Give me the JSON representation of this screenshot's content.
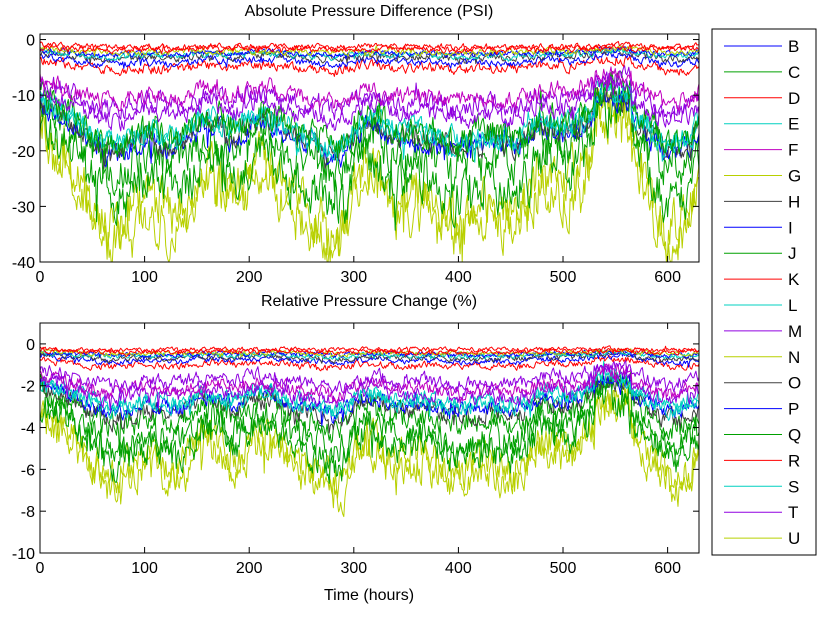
{
  "chart_data": [
    {
      "type": "line",
      "title": "Absolute Pressure Difference (PSI)",
      "xlabel": "",
      "ylabel": "",
      "xlim": [
        0,
        630
      ],
      "ylim": [
        -40,
        1
      ],
      "xticks": [
        0,
        100,
        200,
        300,
        400,
        500,
        600
      ],
      "yticks": [
        0,
        -10,
        -20,
        -30,
        -40
      ],
      "series_profiles": [
        {
          "name": "B",
          "color": "#0000ff",
          "base": -3.5,
          "dip": 0.3,
          "noise": 0.6,
          "spike": 0.5
        },
        {
          "name": "C",
          "color": "#00a000",
          "base": -16,
          "dip": 0.5,
          "noise": 3.5,
          "spike": 2.0
        },
        {
          "name": "D",
          "color": "#ff0000",
          "base": -4.5,
          "dip": 0.25,
          "noise": 0.8,
          "spike": 0.5
        },
        {
          "name": "E",
          "color": "#00d0c0",
          "base": -2.5,
          "dip": 0.25,
          "noise": 0.5,
          "spike": 0.4
        },
        {
          "name": "F",
          "color": "#c000c0",
          "base": -8.5,
          "dip": 0.35,
          "noise": 1.4,
          "spike": 1.0
        },
        {
          "name": "G",
          "color": "#b8d000",
          "base": -2.0,
          "dip": 0.2,
          "noise": 0.5,
          "spike": 0.4
        },
        {
          "name": "H",
          "color": "#404040",
          "base": -14.5,
          "dip": 0.4,
          "noise": 2.0,
          "spike": 1.5
        },
        {
          "name": "I",
          "color": "#0000ff",
          "base": -15,
          "dip": 0.4,
          "noise": 1.8,
          "spike": 1.5
        },
        {
          "name": "J",
          "color": "#00a000",
          "base": -13,
          "dip": 0.45,
          "noise": 2.6,
          "spike": 2.0
        },
        {
          "name": "K",
          "color": "#ff0000",
          "base": -1.2,
          "dip": 0.15,
          "noise": 0.5,
          "spike": 0.4
        },
        {
          "name": "L",
          "color": "#00d0c0",
          "base": -14,
          "dip": 0.4,
          "noise": 1.8,
          "spike": 1.5
        },
        {
          "name": "M",
          "color": "#9000e0",
          "base": -11,
          "dip": 0.35,
          "noise": 1.6,
          "spike": 1.2
        },
        {
          "name": "N",
          "color": "#b8d000",
          "base": -22,
          "dip": 0.55,
          "noise": 4.0,
          "spike": 2.5
        },
        {
          "name": "O",
          "color": "#404040",
          "base": -2.8,
          "dip": 0.25,
          "noise": 0.6,
          "spike": 0.5
        },
        {
          "name": "P",
          "color": "#0000ff",
          "base": -2.2,
          "dip": 0.2,
          "noise": 0.5,
          "spike": 0.4
        },
        {
          "name": "Q",
          "color": "#00a000",
          "base": -20,
          "dip": 0.5,
          "noise": 3.8,
          "spike": 2.5
        },
        {
          "name": "R",
          "color": "#ff0000",
          "base": -1.6,
          "dip": 0.15,
          "noise": 0.5,
          "spike": 0.4
        },
        {
          "name": "S",
          "color": "#00d0c0",
          "base": -13.5,
          "dip": 0.4,
          "noise": 1.8,
          "spike": 1.5
        },
        {
          "name": "T",
          "color": "#9000e0",
          "base": -9.5,
          "dip": 0.35,
          "noise": 1.6,
          "spike": 1.2
        },
        {
          "name": "U",
          "color": "#b8d000",
          "base": -24,
          "dip": 0.55,
          "noise": 4.2,
          "spike": 2.5
        }
      ],
      "points_per_series": 630,
      "clip": [
        -40,
        0.8
      ]
    },
    {
      "type": "line",
      "title": "Relative Pressure Change (%)",
      "xlabel": "Time (hours)",
      "ylabel": "",
      "xlim": [
        0,
        630
      ],
      "ylim": [
        -10,
        1
      ],
      "xticks": [
        0,
        100,
        200,
        300,
        400,
        500,
        600
      ],
      "yticks": [
        0,
        -2,
        -4,
        -6,
        -8,
        -10
      ],
      "series_profiles": [
        {
          "name": "B",
          "color": "#0000ff",
          "base": -0.7,
          "dip": 0.3,
          "noise": 0.12,
          "spike": 0.1
        },
        {
          "name": "C",
          "color": "#00a000",
          "base": -3.4,
          "dip": 0.5,
          "noise": 0.7,
          "spike": 0.45
        },
        {
          "name": "D",
          "color": "#ff0000",
          "base": -0.9,
          "dip": 0.25,
          "noise": 0.15,
          "spike": 0.1
        },
        {
          "name": "E",
          "color": "#00d0c0",
          "base": -0.5,
          "dip": 0.25,
          "noise": 0.1,
          "spike": 0.08
        },
        {
          "name": "F",
          "color": "#c000c0",
          "base": -1.8,
          "dip": 0.35,
          "noise": 0.3,
          "spike": 0.2
        },
        {
          "name": "G",
          "color": "#b8d000",
          "base": -0.4,
          "dip": 0.2,
          "noise": 0.1,
          "spike": 0.08
        },
        {
          "name": "H",
          "color": "#404040",
          "base": -2.6,
          "dip": 0.4,
          "noise": 0.4,
          "spike": 0.3
        },
        {
          "name": "I",
          "color": "#0000ff",
          "base": -2.4,
          "dip": 0.4,
          "noise": 0.35,
          "spike": 0.3
        },
        {
          "name": "J",
          "color": "#00a000",
          "base": -2.8,
          "dip": 0.45,
          "noise": 0.55,
          "spike": 0.4
        },
        {
          "name": "K",
          "color": "#ff0000",
          "base": -0.25,
          "dip": 0.15,
          "noise": 0.1,
          "spike": 0.08
        },
        {
          "name": "L",
          "color": "#00d0c0",
          "base": -2.3,
          "dip": 0.4,
          "noise": 0.35,
          "spike": 0.3
        },
        {
          "name": "M",
          "color": "#9000e0",
          "base": -2.0,
          "dip": 0.35,
          "noise": 0.35,
          "spike": 0.25
        },
        {
          "name": "N",
          "color": "#b8d000",
          "base": -4.2,
          "dip": 0.55,
          "noise": 0.8,
          "spike": 0.5
        },
        {
          "name": "O",
          "color": "#404040",
          "base": -0.6,
          "dip": 0.25,
          "noise": 0.12,
          "spike": 0.1
        },
        {
          "name": "P",
          "color": "#0000ff",
          "base": -0.45,
          "dip": 0.2,
          "noise": 0.1,
          "spike": 0.08
        },
        {
          "name": "Q",
          "color": "#00a000",
          "base": -3.9,
          "dip": 0.5,
          "noise": 0.75,
          "spike": 0.5
        },
        {
          "name": "R",
          "color": "#ff0000",
          "base": -0.35,
          "dip": 0.15,
          "noise": 0.1,
          "spike": 0.08
        },
        {
          "name": "S",
          "color": "#00d0c0",
          "base": -2.2,
          "dip": 0.4,
          "noise": 0.35,
          "spike": 0.3
        },
        {
          "name": "T",
          "color": "#9000e0",
          "base": -1.5,
          "dip": 0.35,
          "noise": 0.3,
          "spike": 0.25
        },
        {
          "name": "U",
          "color": "#b8d000",
          "base": -4.6,
          "dip": 0.55,
          "noise": 0.85,
          "spike": 0.5
        }
      ],
      "points_per_series": 630,
      "clip": [
        -10,
        0.8
      ]
    }
  ],
  "legend": {
    "entries": [
      "B",
      "C",
      "D",
      "E",
      "F",
      "G",
      "H",
      "I",
      "J",
      "K",
      "L",
      "M",
      "N",
      "O",
      "P",
      "Q",
      "R",
      "S",
      "T",
      "U"
    ]
  }
}
